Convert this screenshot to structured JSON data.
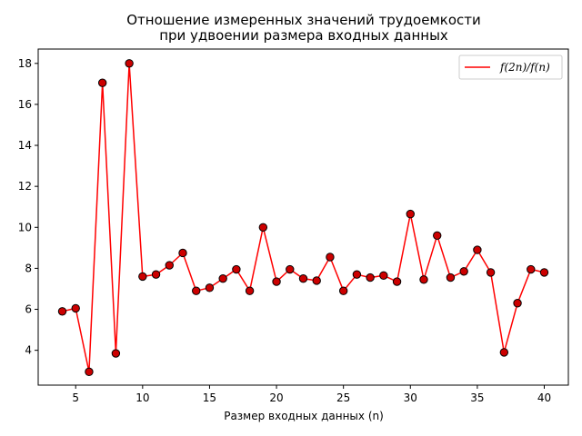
{
  "chart_data": {
    "type": "line",
    "title_line1": "Отношение измеренных значений трудоемкости",
    "title_line2": "при удвоении размера входных данных",
    "xlabel": "Размер входных данных (n)",
    "ylabel": "",
    "xlim": [
      2.2,
      41.8
    ],
    "ylim": [
      2.3,
      18.7
    ],
    "xticks": [
      5,
      10,
      15,
      20,
      25,
      30,
      35,
      40
    ],
    "yticks": [
      4,
      6,
      8,
      10,
      12,
      14,
      16,
      18
    ],
    "grid": false,
    "legend_position": "top-right",
    "series": [
      {
        "name": "f(2n)/f(n)",
        "color": "#ff0000",
        "marker_color": "#cc0000",
        "x": [
          4,
          5,
          6,
          7,
          8,
          9,
          10,
          11,
          12,
          13,
          14,
          15,
          16,
          17,
          18,
          19,
          20,
          21,
          22,
          23,
          24,
          25,
          26,
          27,
          28,
          29,
          30,
          31,
          32,
          33,
          34,
          35,
          36,
          37,
          38,
          39,
          40
        ],
        "y": [
          5.9,
          6.05,
          2.95,
          17.05,
          3.85,
          18.0,
          7.6,
          7.7,
          8.15,
          8.75,
          6.9,
          7.05,
          7.5,
          7.95,
          6.9,
          10.0,
          7.35,
          7.95,
          7.5,
          7.4,
          8.55,
          6.9,
          7.7,
          7.55,
          7.65,
          7.35,
          10.65,
          7.45,
          9.6,
          7.55,
          7.85,
          8.9,
          7.8,
          3.9,
          6.3,
          7.95,
          7.8
        ]
      }
    ]
  }
}
